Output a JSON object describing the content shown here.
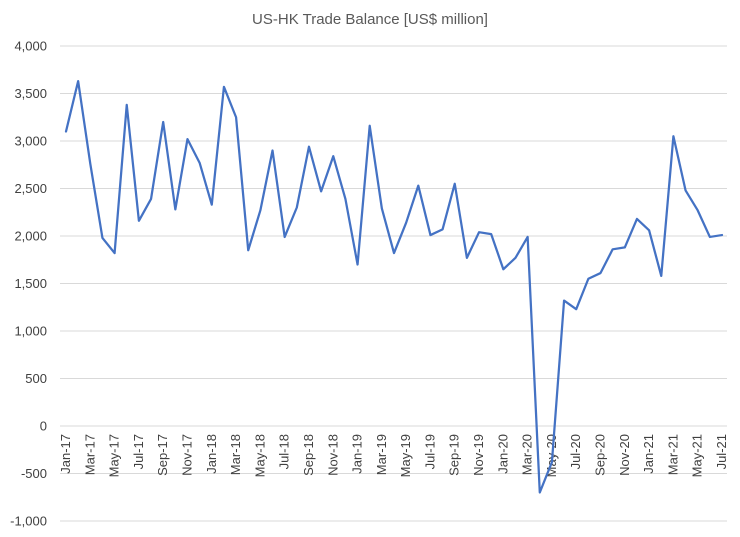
{
  "chart_data": {
    "type": "line",
    "title": "US-HK Trade Balance [US$ million]",
    "xlabel": "",
    "ylabel": "",
    "ylim": [
      -1000,
      4000
    ],
    "y_ticks": [
      -1000,
      -500,
      0,
      500,
      1000,
      1500,
      2000,
      2500,
      3000,
      3500,
      4000
    ],
    "y_tick_labels": [
      "-1,000",
      "-500",
      "0",
      "500",
      "1,000",
      "1,500",
      "2,000",
      "2,500",
      "3,000",
      "3,500",
      "4,000"
    ],
    "x_tick_labels": [
      "Jan-17",
      "Mar-17",
      "May-17",
      "Jul-17",
      "Sep-17",
      "Nov-17",
      "Jan-18",
      "Mar-18",
      "May-18",
      "Jul-18",
      "Sep-18",
      "Nov-18",
      "Jan-19",
      "Mar-19",
      "May-19",
      "Jul-19",
      "Sep-19",
      "Nov-19",
      "Jan-20",
      "Mar-20",
      "May-20",
      "Jul-20",
      "Sep-20",
      "Nov-20",
      "Jan-21",
      "Mar-21",
      "May-21",
      "Jul-21"
    ],
    "grid": true,
    "legend": "none",
    "color": "#4472c4",
    "categories": [
      "Jan-17",
      "Feb-17",
      "Mar-17",
      "Apr-17",
      "May-17",
      "Jun-17",
      "Jul-17",
      "Aug-17",
      "Sep-17",
      "Oct-17",
      "Nov-17",
      "Dec-17",
      "Jan-18",
      "Feb-18",
      "Mar-18",
      "Apr-18",
      "May-18",
      "Jun-18",
      "Jul-18",
      "Aug-18",
      "Sep-18",
      "Oct-18",
      "Nov-18",
      "Dec-18",
      "Jan-19",
      "Feb-19",
      "Mar-19",
      "Apr-19",
      "May-19",
      "Jun-19",
      "Jul-19",
      "Aug-19",
      "Sep-19",
      "Oct-19",
      "Nov-19",
      "Dec-19",
      "Jan-20",
      "Feb-20",
      "Mar-20",
      "Apr-20",
      "May-20",
      "Jun-20",
      "Jul-20",
      "Aug-20",
      "Sep-20",
      "Oct-20",
      "Nov-20",
      "Dec-20",
      "Jan-21",
      "Feb-21",
      "Mar-21",
      "Apr-21",
      "May-21",
      "Jun-21",
      "Jul-21"
    ],
    "values": [
      3100,
      3630,
      2760,
      1980,
      1820,
      3380,
      2160,
      2390,
      3200,
      2280,
      3020,
      2770,
      2330,
      3570,
      3250,
      1850,
      2270,
      2900,
      1990,
      2300,
      2940,
      2470,
      2840,
      2390,
      1700,
      3160,
      2290,
      1820,
      2140,
      2530,
      2010,
      2070,
      2550,
      1770,
      2040,
      2020,
      1650,
      1770,
      1990,
      -700,
      -380,
      1320,
      1230,
      1550,
      1610,
      1860,
      1880,
      2180,
      2060,
      1580,
      3050,
      2480,
      2270,
      1990,
      2010
    ]
  }
}
